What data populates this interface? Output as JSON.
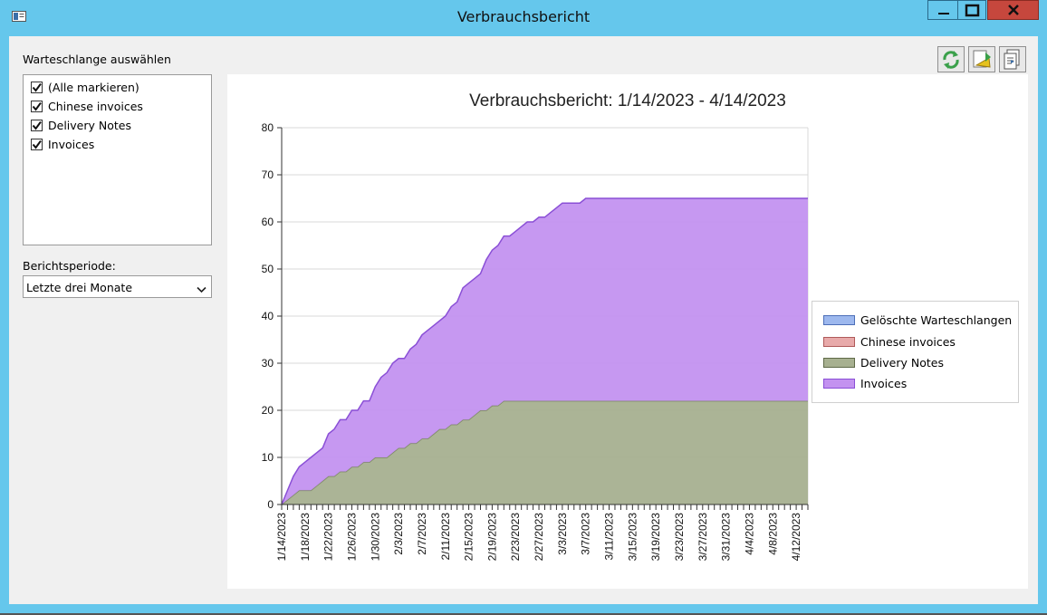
{
  "window": {
    "title": "Verbrauchsbericht"
  },
  "queue_section": {
    "label": "Warteschlange auswählen",
    "items": [
      {
        "label": "(Alle markieren)",
        "checked": true
      },
      {
        "label": "Chinese invoices",
        "checked": true
      },
      {
        "label": "Delivery Notes",
        "checked": true
      },
      {
        "label": "Invoices",
        "checked": true
      }
    ]
  },
  "period_section": {
    "label": "Berichtsperiode:",
    "selected": "Letzte drei Monate"
  },
  "toolbar": {
    "buttons": [
      "refresh-icon",
      "export-icon",
      "copy-report-icon"
    ]
  },
  "chart_data": {
    "type": "area",
    "stacked": true,
    "title": "Verbrauchsbericht: 1/14/2023 - 4/14/2023",
    "xlabel": "",
    "ylabel": "",
    "ylim": [
      0,
      80
    ],
    "yticks": [
      0,
      10,
      20,
      30,
      40,
      50,
      60,
      70,
      80
    ],
    "grid": true,
    "legend_position": "right",
    "x": [
      "1/14/2023",
      "1/15/2023",
      "1/16/2023",
      "1/17/2023",
      "1/18/2023",
      "1/19/2023",
      "1/20/2023",
      "1/21/2023",
      "1/22/2023",
      "1/23/2023",
      "1/24/2023",
      "1/25/2023",
      "1/26/2023",
      "1/27/2023",
      "1/28/2023",
      "1/29/2023",
      "1/30/2023",
      "1/31/2023",
      "2/1/2023",
      "2/2/2023",
      "2/3/2023",
      "2/4/2023",
      "2/5/2023",
      "2/6/2023",
      "2/7/2023",
      "2/8/2023",
      "2/9/2023",
      "2/10/2023",
      "2/11/2023",
      "2/12/2023",
      "2/13/2023",
      "2/14/2023",
      "2/15/2023",
      "2/16/2023",
      "2/17/2023",
      "2/18/2023",
      "2/19/2023",
      "2/20/2023",
      "2/21/2023",
      "2/22/2023",
      "2/23/2023",
      "2/24/2023",
      "2/25/2023",
      "2/26/2023",
      "2/27/2023",
      "2/28/2023",
      "3/1/2023",
      "3/2/2023",
      "3/3/2023",
      "3/4/2023",
      "3/5/2023",
      "3/6/2023",
      "3/7/2023",
      "3/8/2023",
      "3/9/2023",
      "3/10/2023",
      "3/11/2023",
      "3/12/2023",
      "3/13/2023",
      "3/14/2023",
      "3/15/2023",
      "3/16/2023",
      "3/17/2023",
      "3/18/2023",
      "3/19/2023",
      "3/20/2023",
      "3/21/2023",
      "3/22/2023",
      "3/23/2023",
      "3/24/2023",
      "3/25/2023",
      "3/26/2023",
      "3/27/2023",
      "3/28/2023",
      "3/29/2023",
      "3/30/2023",
      "3/31/2023",
      "4/1/2023",
      "4/2/2023",
      "4/3/2023",
      "4/4/2023",
      "4/5/2023",
      "4/6/2023",
      "4/7/2023",
      "4/8/2023",
      "4/9/2023",
      "4/10/2023",
      "4/11/2023",
      "4/12/2023",
      "4/13/2023",
      "4/14/2023"
    ],
    "x_tick_labels": [
      "1/14/2023",
      "1/18/2023",
      "1/22/2023",
      "1/26/2023",
      "1/30/2023",
      "2/3/2023",
      "2/7/2023",
      "2/11/2023",
      "2/15/2023",
      "2/19/2023",
      "2/23/2023",
      "2/27/2023",
      "3/3/2023",
      "3/7/2023",
      "3/11/2023",
      "3/15/2023",
      "3/19/2023",
      "3/23/2023",
      "3/27/2023",
      "3/31/2023",
      "4/4/2023",
      "4/8/2023",
      "4/12/2023"
    ],
    "series": [
      {
        "name": "Gelöschte Warteschlangen",
        "color": "#9db8ee",
        "values": [
          0,
          0,
          0,
          0,
          0,
          0,
          0,
          0,
          0,
          0,
          0,
          0,
          0,
          0,
          0,
          0,
          0,
          0,
          0,
          0,
          0,
          0,
          0,
          0,
          0,
          0,
          0,
          0,
          0,
          0,
          0,
          0,
          0,
          0,
          0,
          0,
          0,
          0,
          0,
          0,
          0,
          0,
          0,
          0,
          0,
          0,
          0,
          0,
          0,
          0,
          0,
          0,
          0,
          0,
          0,
          0,
          0,
          0,
          0,
          0,
          0,
          0,
          0,
          0,
          0,
          0,
          0,
          0,
          0,
          0,
          0,
          0,
          0,
          0,
          0,
          0,
          0,
          0,
          0,
          0,
          0,
          0,
          0,
          0,
          0,
          0,
          0,
          0,
          0,
          0,
          0
        ]
      },
      {
        "name": "Chinese invoices",
        "color": "#e8aaaa",
        "values": [
          0,
          0,
          0,
          0,
          0,
          0,
          0,
          0,
          0,
          0,
          0,
          0,
          0,
          0,
          0,
          0,
          0,
          0,
          0,
          0,
          0,
          0,
          0,
          0,
          0,
          0,
          0,
          0,
          0,
          0,
          0,
          0,
          0,
          0,
          0,
          0,
          0,
          0,
          0,
          0,
          0,
          0,
          0,
          0,
          0,
          0,
          0,
          0,
          0,
          0,
          0,
          0,
          0,
          0,
          0,
          0,
          0,
          0,
          0,
          0,
          0,
          0,
          0,
          0,
          0,
          0,
          0,
          0,
          0,
          0,
          0,
          0,
          0,
          0,
          0,
          0,
          0,
          0,
          0,
          0,
          0,
          0,
          0,
          0,
          0,
          0,
          0,
          0,
          0,
          0,
          0
        ]
      },
      {
        "name": "Delivery Notes",
        "color": "#a7b090",
        "values": [
          0,
          1,
          2,
          3,
          3,
          3,
          4,
          5,
          6,
          6,
          7,
          7,
          8,
          8,
          9,
          9,
          10,
          10,
          10,
          11,
          12,
          12,
          13,
          13,
          14,
          14,
          15,
          16,
          16,
          17,
          17,
          18,
          18,
          19,
          20,
          20,
          21,
          21,
          22,
          22,
          22,
          22,
          22,
          22,
          22,
          22,
          22,
          22,
          22,
          22,
          22,
          22,
          22,
          22,
          22,
          22,
          22,
          22,
          22,
          22,
          22,
          22,
          22,
          22,
          22,
          22,
          22,
          22,
          22,
          22,
          22,
          22,
          22,
          22,
          22,
          22,
          22,
          22,
          22,
          22,
          22,
          22,
          22,
          22,
          22,
          22,
          22,
          22,
          22,
          22,
          22
        ]
      },
      {
        "name": "Invoices",
        "color": "#c392f0",
        "values": [
          0,
          2,
          4,
          5,
          6,
          7,
          7,
          7,
          9,
          10,
          11,
          11,
          12,
          12,
          13,
          13,
          15,
          17,
          18,
          19,
          19,
          19,
          20,
          21,
          22,
          23,
          23,
          23,
          24,
          25,
          26,
          28,
          29,
          29,
          29,
          32,
          33,
          34,
          35,
          35,
          36,
          37,
          38,
          38,
          39,
          39,
          40,
          41,
          42,
          42,
          42,
          42,
          43,
          43,
          43,
          43,
          43,
          43,
          43,
          43,
          43,
          43,
          43,
          43,
          43,
          43,
          43,
          43,
          43,
          43,
          43,
          43,
          43,
          43,
          43,
          43,
          43,
          43,
          43,
          43,
          43,
          43,
          43,
          43,
          43,
          43,
          43,
          43,
          43,
          43,
          43
        ]
      }
    ]
  }
}
